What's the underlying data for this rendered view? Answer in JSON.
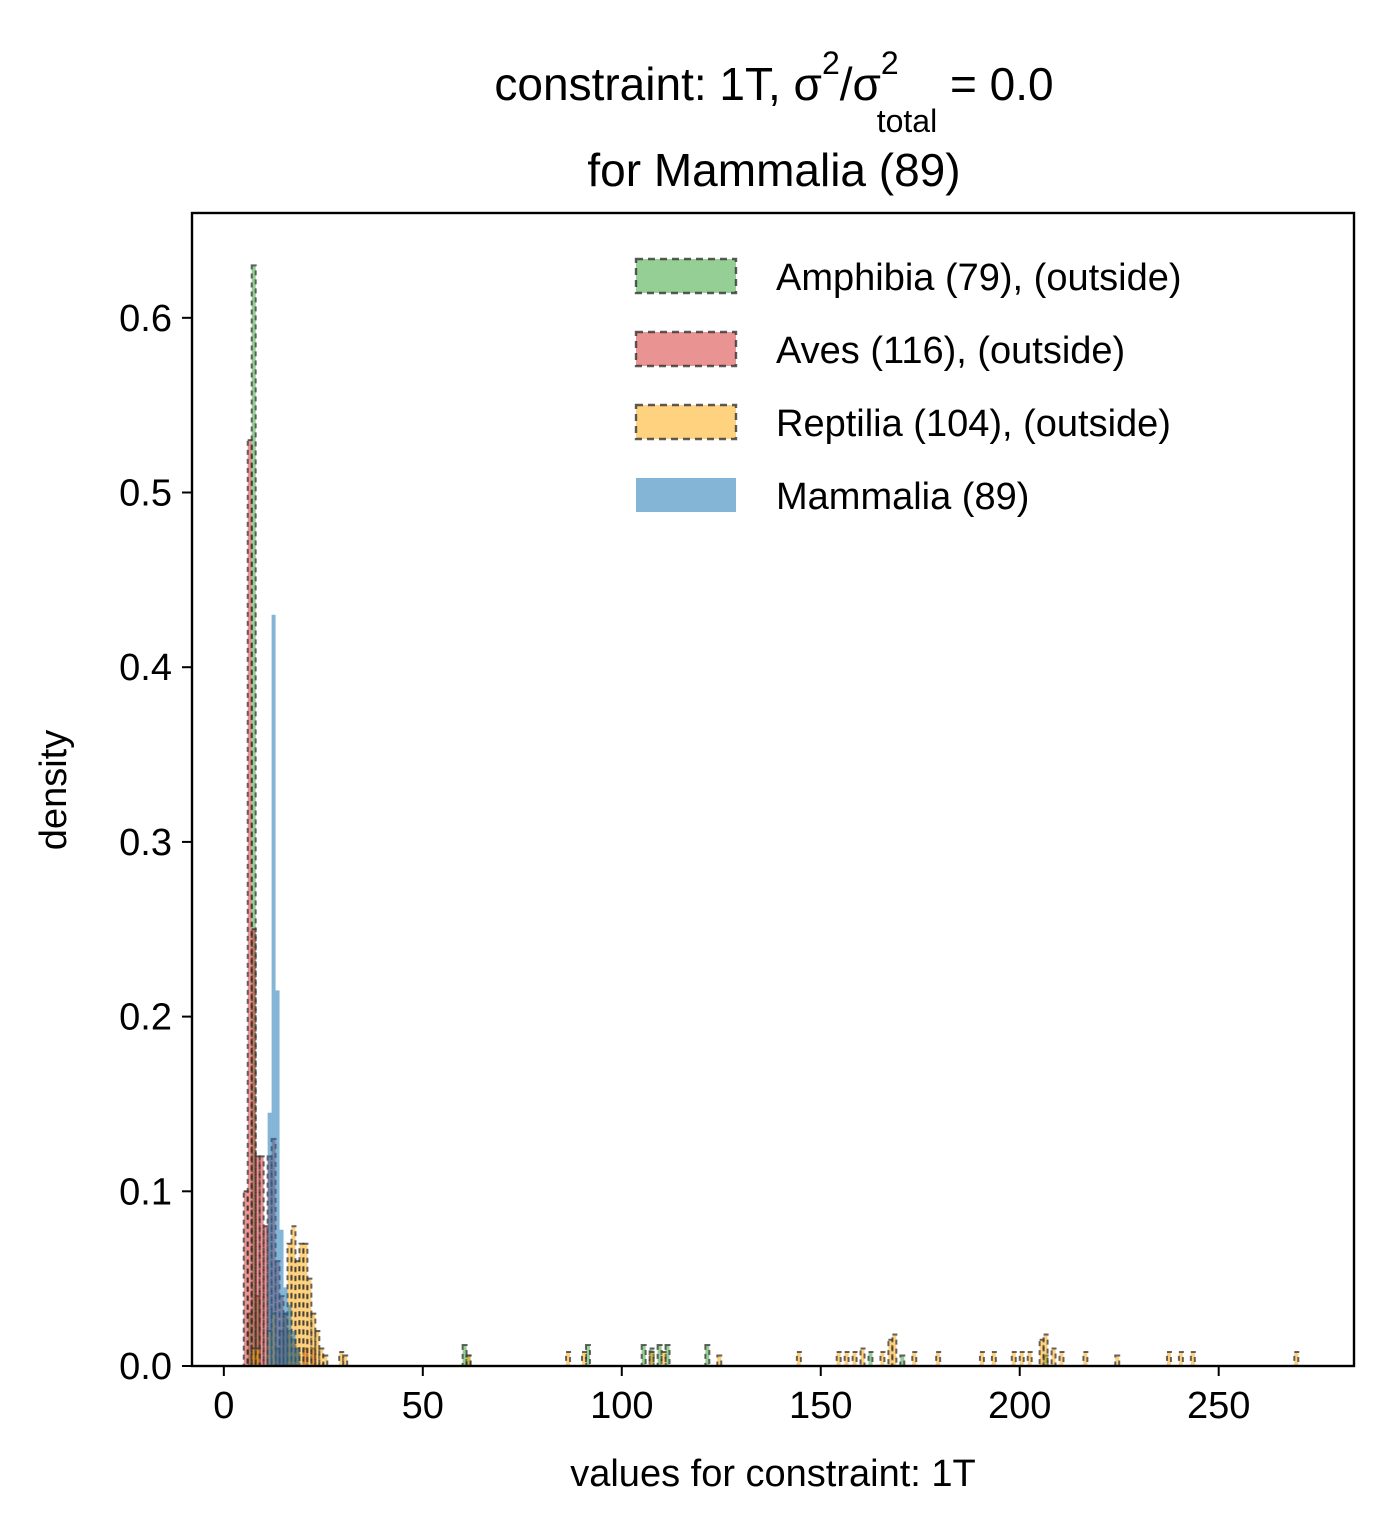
{
  "chart_data": {
    "type": "histogram",
    "title": {
      "line1_prefix": "constraint: 1T, σ",
      "sup1": "2",
      "slash_sigma": "/σ",
      "sup2": "2",
      "sub": "total",
      "eq": " =  0.0",
      "line2": "for Mammalia (89)"
    },
    "xlabel": "values for constraint: 1T",
    "ylabel": "density",
    "xlim": [
      -8,
      284
    ],
    "ylim": [
      0,
      0.66
    ],
    "xticks": [
      "0",
      "50",
      "100",
      "150",
      "200",
      "250"
    ],
    "xtick_values": [
      0,
      50,
      100,
      150,
      200,
      250
    ],
    "yticks": [
      "0.0",
      "0.1",
      "0.2",
      "0.3",
      "0.4",
      "0.5",
      "0.6"
    ],
    "ytick_values": [
      0,
      0.1,
      0.2,
      0.3,
      0.4,
      0.5,
      0.6
    ],
    "legend_position": "top-right",
    "bin_width": 1.0,
    "series": [
      {
        "name": "Amphibia (79), (outside)",
        "color": "#2ca02c",
        "style": "dashed-edge",
        "bins": [
          [
            6.0,
            0.03
          ],
          [
            7.0,
            0.63
          ],
          [
            8.0,
            0.04
          ],
          [
            13.0,
            0.01
          ],
          [
            14.0,
            0.02
          ],
          [
            15.0,
            0.03
          ],
          [
            16.0,
            0.02
          ],
          [
            17.0,
            0.01
          ],
          [
            18.0,
            0.01
          ],
          [
            60.0,
            0.012
          ],
          [
            61.0,
            0.006
          ],
          [
            91.0,
            0.012
          ],
          [
            105.0,
            0.012
          ],
          [
            107.0,
            0.01
          ],
          [
            109.0,
            0.012
          ],
          [
            111.0,
            0.012
          ],
          [
            121.0,
            0.012
          ],
          [
            162.0,
            0.008
          ],
          [
            170.0,
            0.006
          ],
          [
            206.0,
            0.006
          ]
        ]
      },
      {
        "name": "Aves (116), (outside)",
        "color": "#d62728",
        "style": "dashed-edge",
        "bins": [
          [
            5.0,
            0.1
          ],
          [
            6.0,
            0.53
          ],
          [
            7.0,
            0.25
          ],
          [
            8.0,
            0.12
          ],
          [
            9.0,
            0.12
          ],
          [
            10.0,
            0.08
          ],
          [
            11.0,
            0.12
          ],
          [
            12.0,
            0.13
          ],
          [
            13.0,
            0.06
          ],
          [
            14.0,
            0.04
          ],
          [
            15.0,
            0.03
          ],
          [
            16.0,
            0.02
          ],
          [
            17.0,
            0.015
          ],
          [
            18.0,
            0.01
          ],
          [
            20.0,
            0.01
          ],
          [
            22.0,
            0.01
          ]
        ]
      },
      {
        "name": "Reptilia (104), (outside)",
        "color": "#ffa500",
        "style": "dashed-edge",
        "bins": [
          [
            7.0,
            0.01
          ],
          [
            8.0,
            0.01
          ],
          [
            11.0,
            0.02
          ],
          [
            12.0,
            0.03
          ],
          [
            16.0,
            0.07
          ],
          [
            17.0,
            0.08
          ],
          [
            18.0,
            0.06
          ],
          [
            19.0,
            0.07
          ],
          [
            20.0,
            0.07
          ],
          [
            21.0,
            0.05
          ],
          [
            22.0,
            0.03
          ],
          [
            23.0,
            0.02
          ],
          [
            24.0,
            0.01
          ],
          [
            25.0,
            0.006
          ],
          [
            29.0,
            0.008
          ],
          [
            30.0,
            0.006
          ],
          [
            61.0,
            0.006
          ],
          [
            86.0,
            0.008
          ],
          [
            90.0,
            0.008
          ],
          [
            107.0,
            0.008
          ],
          [
            110.0,
            0.008
          ],
          [
            124.0,
            0.006
          ],
          [
            144.0,
            0.008
          ],
          [
            154.0,
            0.008
          ],
          [
            156.0,
            0.008
          ],
          [
            158.0,
            0.008
          ],
          [
            160.0,
            0.01
          ],
          [
            165.0,
            0.008
          ],
          [
            167.0,
            0.015
          ],
          [
            168.0,
            0.018
          ],
          [
            173.0,
            0.008
          ],
          [
            179.0,
            0.008
          ],
          [
            190.0,
            0.008
          ],
          [
            193.0,
            0.008
          ],
          [
            198.0,
            0.008
          ],
          [
            200.0,
            0.008
          ],
          [
            202.0,
            0.008
          ],
          [
            205.0,
            0.015
          ],
          [
            206.0,
            0.018
          ],
          [
            208.0,
            0.01
          ],
          [
            210.0,
            0.008
          ],
          [
            216.0,
            0.008
          ],
          [
            224.0,
            0.006
          ],
          [
            237.0,
            0.008
          ],
          [
            240.0,
            0.008
          ],
          [
            243.0,
            0.008
          ],
          [
            269.0,
            0.008
          ]
        ]
      },
      {
        "name": "Mammalia (89)",
        "color": "#1f77b4",
        "style": "solid",
        "bins": [
          [
            11.0,
            0.145
          ],
          [
            12.0,
            0.43
          ],
          [
            13.0,
            0.215
          ],
          [
            14.0,
            0.078
          ],
          [
            15.0,
            0.045
          ],
          [
            16.0,
            0.035
          ],
          [
            17.0,
            0.02
          ],
          [
            18.0,
            0.01
          ]
        ]
      }
    ]
  }
}
